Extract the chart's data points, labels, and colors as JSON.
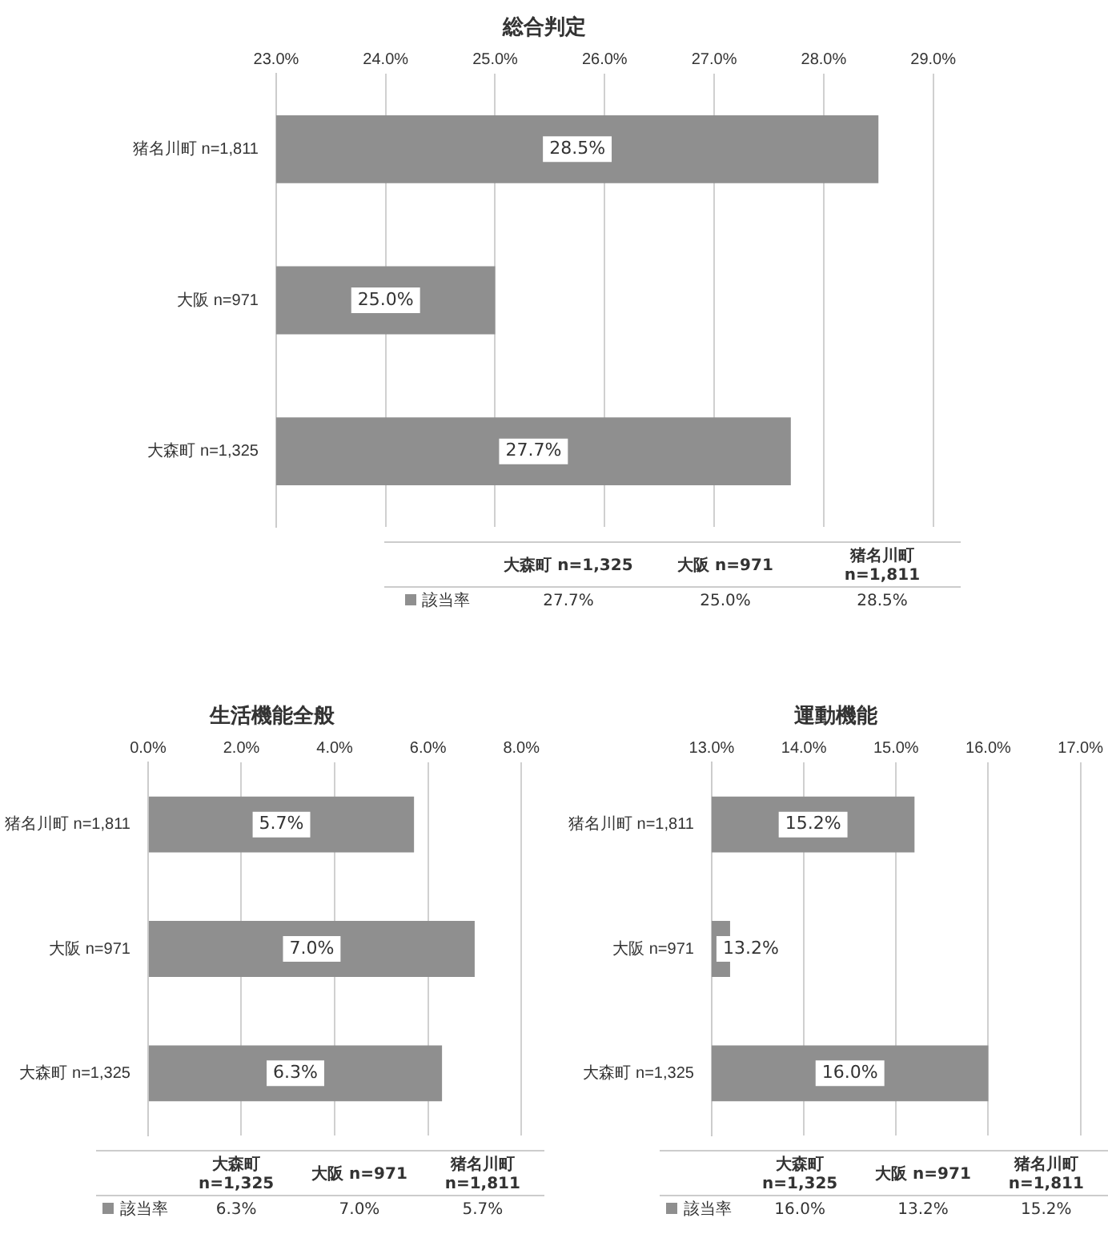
{
  "chart_data": [
    {
      "type": "bar",
      "orientation": "horizontal",
      "title": "総合判定",
      "categories": [
        "猪名川町 n=1,811",
        "大阪 n=971",
        "大森町 n=1,325"
      ],
      "xlim": [
        23,
        29
      ],
      "xticks": [
        {
          "value": 23,
          "label": "23.0%"
        },
        {
          "value": 24,
          "label": "24.0%"
        },
        {
          "value": 25,
          "label": "25.0%"
        },
        {
          "value": 26,
          "label": "26.0%"
        },
        {
          "value": 27,
          "label": "27.0%"
        },
        {
          "value": 28,
          "label": "28.0%"
        },
        {
          "value": 29,
          "label": "29.0%"
        }
      ],
      "grid": "x",
      "legend": "bottom",
      "series": [
        {
          "name": "該当率",
          "color": "#8f8f8f",
          "values": [
            28.5,
            25.0,
            27.7
          ],
          "value_labels": [
            "28.5%",
            "25.0%",
            "27.7%"
          ]
        }
      ]
    },
    {
      "type": "bar",
      "orientation": "horizontal",
      "title": "生活機能全般",
      "categories": [
        "猪名川町 n=1,811",
        "大阪 n=971",
        "大森町 n=1,325"
      ],
      "xlim": [
        0,
        8
      ],
      "xticks": [
        {
          "value": 0,
          "label": "0.0%"
        },
        {
          "value": 2,
          "label": "2.0%"
        },
        {
          "value": 4,
          "label": "4.0%"
        },
        {
          "value": 6,
          "label": "6.0%"
        },
        {
          "value": 8,
          "label": "8.0%"
        }
      ],
      "grid": "x",
      "legend": "bottom",
      "series": [
        {
          "name": "該当率",
          "color": "#8f8f8f",
          "values": [
            5.7,
            7.0,
            6.3
          ],
          "value_labels": [
            "5.7%",
            "7.0%",
            "6.3%"
          ]
        }
      ]
    },
    {
      "type": "bar",
      "orientation": "horizontal",
      "title": "運動機能",
      "categories": [
        "猪名川町 n=1,811",
        "大阪 n=971",
        "大森町 n=1,325"
      ],
      "xlim": [
        13,
        17
      ],
      "xticks": [
        {
          "value": 13,
          "label": "13.0%"
        },
        {
          "value": 14,
          "label": "14.0%"
        },
        {
          "value": 15,
          "label": "15.0%"
        },
        {
          "value": 16,
          "label": "16.0%"
        },
        {
          "value": 17,
          "label": "17.0%"
        }
      ],
      "grid": "x",
      "legend": "bottom",
      "series": [
        {
          "name": "該当率",
          "color": "#8f8f8f",
          "values": [
            15.2,
            13.2,
            16.0
          ],
          "value_labels": [
            "15.2%",
            "13.2%",
            "16.0%"
          ]
        }
      ]
    }
  ]
}
